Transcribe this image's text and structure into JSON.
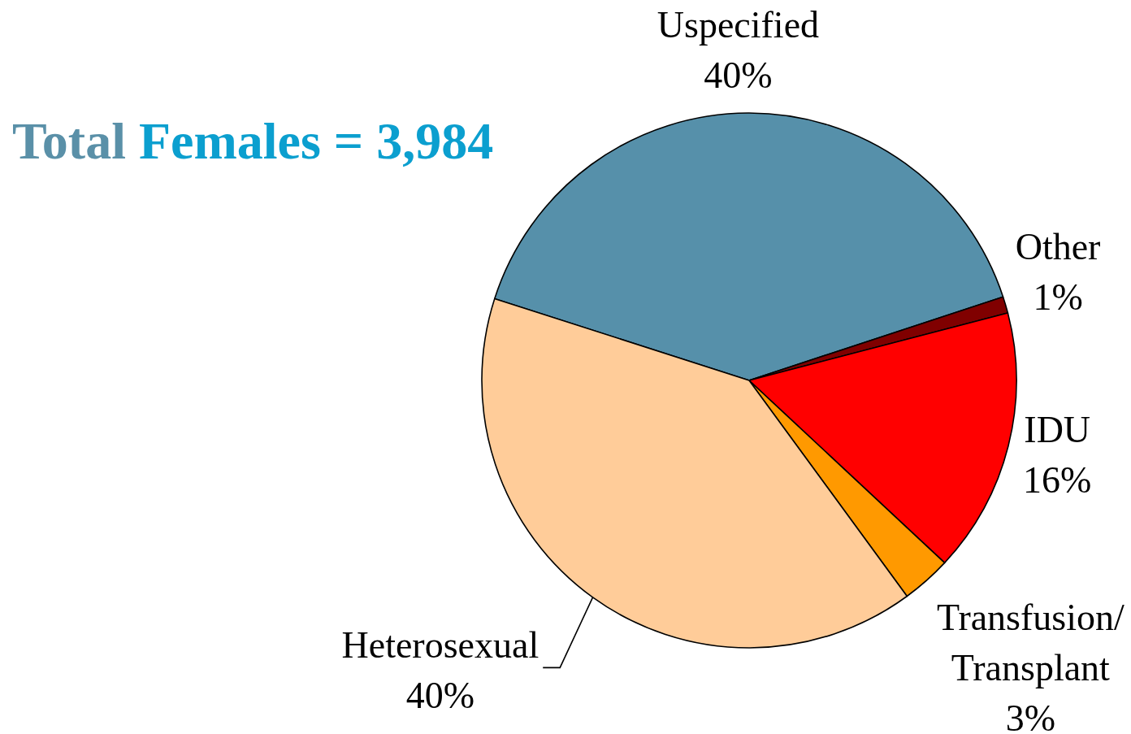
{
  "chart_data": {
    "type": "pie",
    "title": "Total Females = 3,984",
    "categories": [
      "Uspecified",
      "Other",
      "IDU",
      "Transfusion/Transplant",
      "Heterosexual"
    ],
    "values": [
      40,
      1,
      16,
      3,
      40
    ],
    "colors": [
      "#5690aa",
      "#800000",
      "#ff0000",
      "#ff9900",
      "#ffcc99"
    ],
    "value_labels": [
      "40%",
      "1%",
      "16%",
      "3%",
      "40%"
    ]
  }
}
